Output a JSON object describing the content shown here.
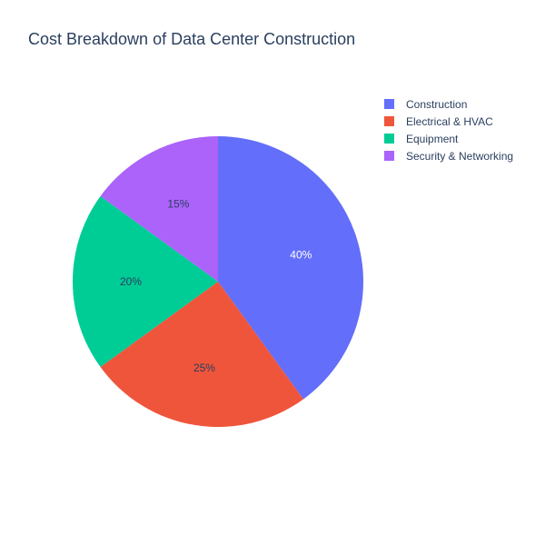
{
  "chart_data": {
    "type": "pie",
    "title": "Cost Breakdown of Data Center Construction",
    "categories": [
      "Construction",
      "Electrical & HVAC",
      "Equipment",
      "Security & Networking"
    ],
    "values": [
      40,
      25,
      20,
      15
    ],
    "value_labels": [
      "40%",
      "25%",
      "20%",
      "15%"
    ],
    "colors": [
      "#636efa",
      "#ef553b",
      "#00cc96",
      "#ab63fa"
    ],
    "label_colors": [
      "#ffffff",
      "#2a3f5f",
      "#2a3f5f",
      "#2a3f5f"
    ],
    "legend_position": "top-right",
    "direction": "clockwise",
    "start": "top"
  }
}
